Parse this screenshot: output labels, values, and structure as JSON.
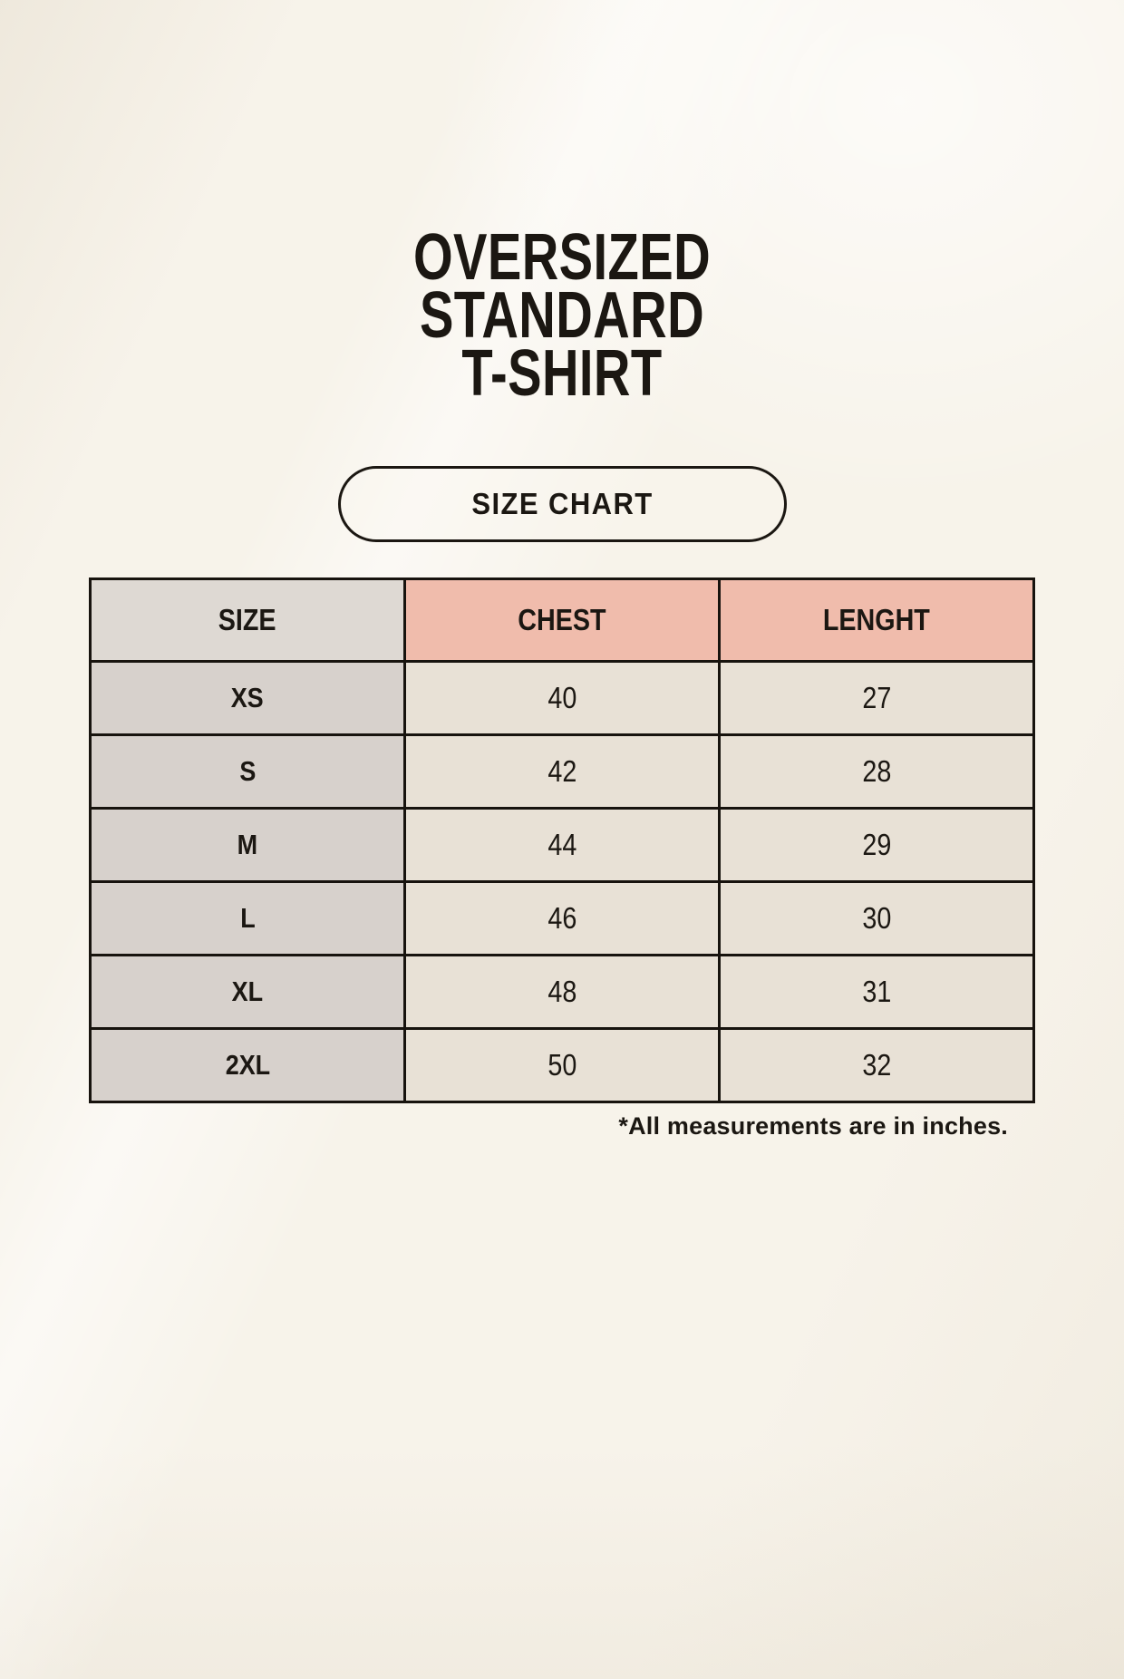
{
  "title": {
    "lines": [
      "OVERSIZED",
      "STANDARD",
      "T-SHIRT"
    ]
  },
  "badge": {
    "label": "SIZE CHART"
  },
  "chart_data": {
    "type": "table",
    "title": "OVERSIZED STANDARD T-SHIRT",
    "columns": [
      "SIZE",
      "CHEST",
      "LENGHT"
    ],
    "rows": [
      {
        "size": "XS",
        "chest": "40",
        "len": "27"
      },
      {
        "size": "S",
        "chest": "42",
        "len": "28"
      },
      {
        "size": "M",
        "chest": "44",
        "len": "29"
      },
      {
        "size": "L",
        "chest": "46",
        "len": "30"
      },
      {
        "size": "XL",
        "chest": "48",
        "len": "31"
      },
      {
        "size": "2XL",
        "chest": "50",
        "len": "32"
      }
    ],
    "note": "*All measurements are in inches.",
    "units": "inches"
  },
  "footnote": "*All measurements are in inches.",
  "colors": {
    "background": "#f7f3ea",
    "text": "#1b1712",
    "border": "#17130e",
    "header_size_bg": "#ded9d3",
    "header_accent_bg": "#f0bcac",
    "row_label_bg": "#d7d1cc",
    "row_value_bg": "#e8e1d6"
  }
}
